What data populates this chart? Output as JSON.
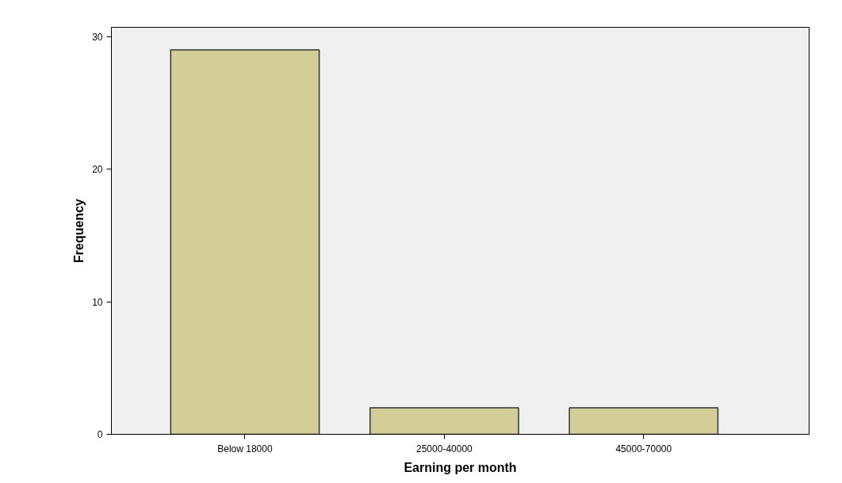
{
  "chart_data": {
    "type": "bar",
    "xlabel": "Earning per month",
    "ylabel": "Frequency",
    "categories": [
      "Below 18000",
      "25000-40000",
      "45000-70000"
    ],
    "values": [
      29,
      2,
      2
    ],
    "color": "#d3ce97",
    "ylim": [
      0,
      30.7
    ],
    "yticks": [
      0,
      10,
      20,
      30
    ],
    "grid": false
  }
}
